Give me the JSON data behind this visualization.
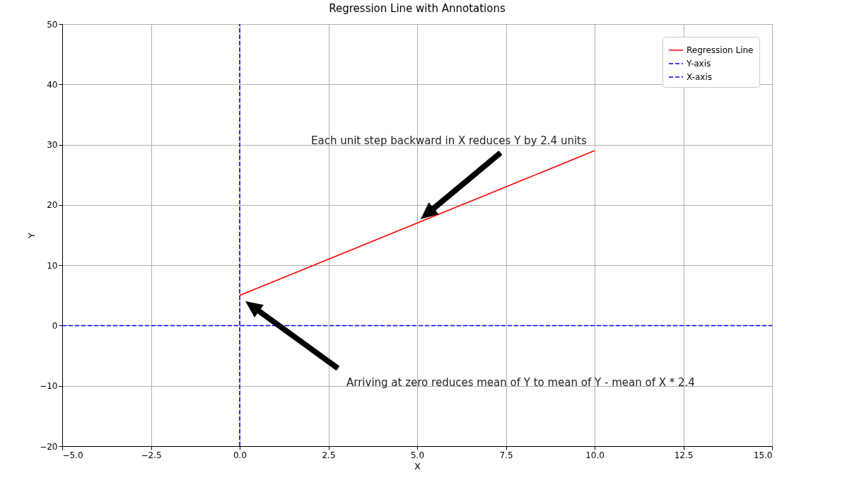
{
  "chart_data": {
    "type": "line",
    "title": "Regression Line with Annotations",
    "xlabel": "X",
    "ylabel": "Y",
    "series": [
      {
        "name": "Regression Line",
        "color": "#ff0000",
        "x": [
          0,
          10
        ],
        "values": [
          5,
          29
        ],
        "line_style": "solid"
      },
      {
        "name": "Y-axis",
        "color": "#0000ff",
        "x": [
          0,
          0
        ],
        "values": [
          -20,
          50
        ],
        "line_style": "dashed"
      },
      {
        "name": "X-axis",
        "color": "#0000ff",
        "x": [
          -5,
          15
        ],
        "values": [
          0,
          0
        ],
        "line_style": "dashed"
      }
    ],
    "xlim": [
      -5,
      15
    ],
    "xticks": [
      {
        "value": -5,
        "label": "−5.0"
      },
      {
        "value": -2.5,
        "label": "−2.5"
      },
      {
        "value": 0,
        "label": "0.0"
      },
      {
        "value": 2.5,
        "label": "2.5"
      },
      {
        "value": 5,
        "label": "5.0"
      },
      {
        "value": 7.5,
        "label": "7.5"
      },
      {
        "value": 10,
        "label": "10.0"
      },
      {
        "value": 12.5,
        "label": "12.5"
      },
      {
        "value": 15,
        "label": "15.0"
      }
    ],
    "ylim": [
      -20,
      50
    ],
    "yticks": [
      {
        "value": -20,
        "label": "−20"
      },
      {
        "value": -10,
        "label": "−10"
      },
      0,
      10,
      20,
      30,
      40,
      50
    ],
    "grid": true,
    "legend": "top right",
    "marker": "none",
    "annotations": [
      "Each unit step backward in X reduces Y by 2.4 units",
      "Arriving at zero reduces mean of Y to mean of Y - mean of X * 2.4"
    ]
  }
}
